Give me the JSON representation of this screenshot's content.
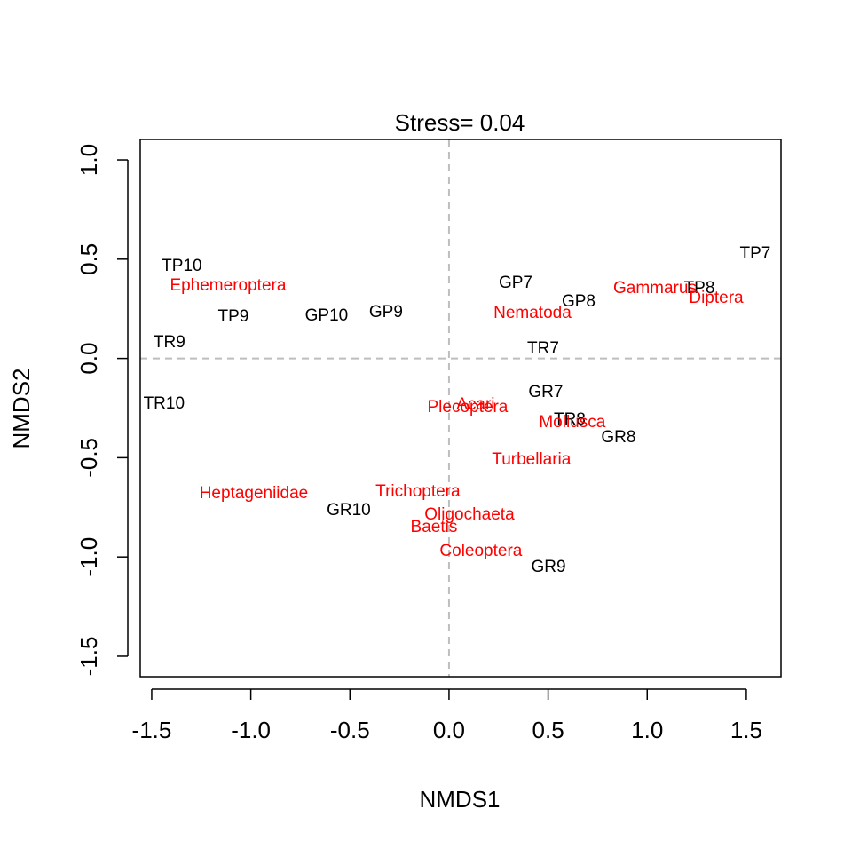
{
  "chart_data": {
    "type": "text-scatter",
    "title": "Stress= 0.04",
    "x_label": "NMDS1",
    "y_label": "NMDS2",
    "xlim": [
      -1.558,
      1.675
    ],
    "ylim": [
      -1.603,
      1.103
    ],
    "xticks": [
      {
        "value": -1.5,
        "label": "-1.5"
      },
      {
        "value": -1,
        "label": "-1.0"
      },
      {
        "value": -0.5,
        "label": "-0.5"
      },
      {
        "value": 0,
        "label": "0.0"
      },
      {
        "value": 0.5,
        "label": "0.5"
      },
      {
        "value": 1,
        "label": "1.0"
      },
      {
        "value": 1.5,
        "label": "1.5"
      }
    ],
    "yticks": [
      {
        "value": -1.5,
        "label": "-1.5"
      },
      {
        "value": -1,
        "label": "-1.0"
      },
      {
        "value": -0.5,
        "label": "-0.5"
      },
      {
        "value": 0,
        "label": "0.0"
      },
      {
        "value": 0.5,
        "label": "0.5"
      },
      {
        "value": 1,
        "label": "1.0"
      }
    ],
    "hline": 0,
    "vline": 0,
    "series": [
      {
        "color": "#000000",
        "labels": [
          "TP10",
          "TP9",
          "TR9",
          "TR10",
          "GP10",
          "GP9",
          "GP7",
          "GP8",
          "TP8",
          "TP7",
          "TR7",
          "GR7",
          "TR8",
          "GR8",
          "GR10",
          "GR9"
        ],
        "x": [
          -1.348,
          -1.088,
          -1.411,
          -1.438,
          -0.618,
          -0.318,
          0.336,
          0.654,
          1.263,
          1.545,
          0.475,
          0.488,
          0.609,
          0.855,
          -0.506,
          0.502
        ],
        "values": [
          0.463,
          0.208,
          0.079,
          -0.23,
          0.213,
          0.231,
          0.378,
          0.284,
          0.351,
          0.526,
          0.047,
          -0.172,
          -0.31,
          -0.399,
          -0.766,
          -1.053
        ]
      },
      {
        "color": "#ff0000",
        "labels": [
          "Ephemeroptera",
          "Nematoda",
          "Gammarus",
          "Diptera",
          "Acari",
          "Plecoptera",
          "Mollusca",
          "Turbellaria",
          "Heptageniidae",
          "Trichoptera",
          "Oligochaeta",
          "Baetis",
          "Coleoptera"
        ],
        "x": [
          -1.115,
          0.421,
          1.039,
          1.348,
          0.134,
          0.094,
          0.622,
          0.416,
          -0.985,
          -0.157,
          0.103,
          -0.076,
          0.161
        ],
        "values": [
          0.365,
          0.227,
          0.351,
          0.302,
          -0.234,
          -0.248,
          -0.324,
          -0.512,
          -0.682,
          -0.673,
          -0.789,
          -0.851,
          -0.972
        ]
      }
    ]
  }
}
